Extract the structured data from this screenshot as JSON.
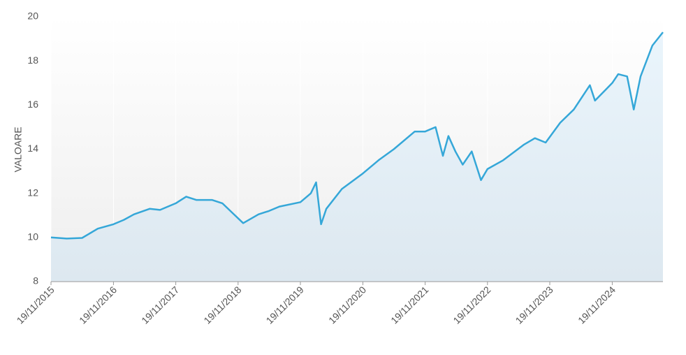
{
  "chart_data": {
    "type": "area",
    "y_label": "VALOARE",
    "color": "#35a7d8",
    "grid": true,
    "x": [
      "19/11/2015",
      "19/02/2016",
      "19/05/2016",
      "19/08/2016",
      "19/11/2016",
      "19/01/2017",
      "19/03/2017",
      "19/06/2017",
      "19/08/2017",
      "19/11/2017",
      "19/01/2018",
      "19/03/2018",
      "19/06/2018",
      "19/08/2018",
      "19/10/2018",
      "19/12/2018",
      "19/03/2019",
      "19/05/2019",
      "19/07/2019",
      "19/11/2019",
      "19/01/2020",
      "19/02/2020",
      "19/03/2020",
      "19/04/2020",
      "19/07/2020",
      "19/11/2020",
      "19/02/2021",
      "19/05/2021",
      "19/09/2021",
      "19/11/2021",
      "19/01/2022",
      "03/03/2022",
      "04/04/2022",
      "15/05/2022",
      "27/06/2022",
      "19/08/2022",
      "12/10/2022",
      "19/11/2022",
      "19/02/2023",
      "19/06/2023",
      "24/08/2023",
      "26/10/2023",
      "19/01/2024",
      "08/04/2024",
      "11/07/2024",
      "10/08/2024",
      "19/11/2024",
      "24/12/2024",
      "14/02/2025",
      "25/03/2025",
      "04/05/2025",
      "12/07/2025",
      "12/09/2025"
    ],
    "values": [
      10.0,
      9.95,
      9.98,
      10.4,
      10.6,
      10.8,
      11.05,
      11.3,
      11.25,
      11.55,
      11.85,
      11.7,
      11.7,
      11.55,
      11.1,
      10.65,
      11.05,
      11.2,
      11.4,
      11.6,
      12.0,
      12.5,
      10.6,
      11.3,
      12.2,
      12.9,
      13.5,
      14.0,
      14.8,
      14.8,
      15.0,
      13.7,
      14.6,
      13.9,
      13.3,
      13.9,
      12.6,
      13.1,
      13.5,
      14.2,
      14.5,
      14.3,
      15.2,
      15.8,
      16.9,
      16.2,
      17.0,
      17.4,
      17.3,
      15.8,
      17.3,
      18.7,
      19.3
    ],
    "xlim": [
      "19/11/2015",
      "12/09/2025"
    ],
    "xticks": [
      "19/11/2015",
      "19/11/2016",
      "19/11/2017",
      "19/11/2018",
      "19/11/2019",
      "19/11/2020",
      "19/11/2021",
      "19/11/2022",
      "19/11/2023",
      "19/11/2024"
    ],
    "ylim": [
      8,
      20
    ],
    "yticks": [
      8,
      10,
      12,
      14,
      16,
      18,
      20
    ]
  }
}
